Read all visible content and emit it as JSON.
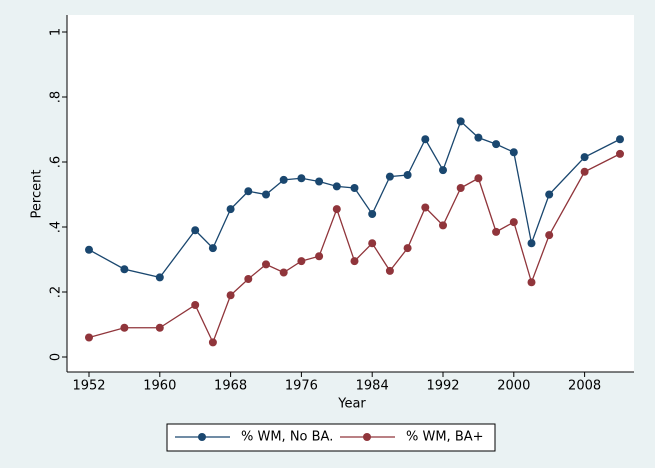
{
  "chart_data": {
    "type": "line",
    "x_label": "Year",
    "y_label": "Percent",
    "x": [
      1952,
      1956,
      1960,
      1964,
      1966,
      1968,
      1970,
      1972,
      1974,
      1976,
      1978,
      1980,
      1982,
      1984,
      1986,
      1988,
      1990,
      1992,
      1994,
      1996,
      1998,
      2000,
      2002,
      2004,
      2008,
      2012
    ],
    "series": [
      {
        "name": "% WM, No BA.",
        "color": "#1a476f",
        "values": [
          0.33,
          0.27,
          0.245,
          0.39,
          0.335,
          0.455,
          0.51,
          0.5,
          0.545,
          0.55,
          0.54,
          0.525,
          0.52,
          0.44,
          0.555,
          0.56,
          0.67,
          0.575,
          0.725,
          0.675,
          0.655,
          0.63,
          0.35,
          0.5,
          0.615,
          0.67
        ]
      },
      {
        "name": "% WM, BA+",
        "color": "#90353b",
        "values": [
          0.06,
          0.09,
          0.09,
          0.16,
          0.045,
          0.19,
          0.24,
          0.285,
          0.26,
          0.295,
          0.31,
          0.455,
          0.295,
          0.35,
          0.265,
          0.335,
          0.46,
          0.405,
          0.52,
          0.55,
          0.385,
          0.415,
          0.23,
          0.375,
          0.57,
          0.625
        ]
      }
    ],
    "xlim": [
      1952,
      2012
    ],
    "xticks": [
      1952,
      1960,
      1968,
      1976,
      1984,
      1992,
      2000,
      2008
    ],
    "ylim": [
      0,
      1
    ],
    "yticks": [
      0,
      {
        "value": 0.2,
        "label": ".2"
      },
      {
        "value": 0.4,
        "label": ".4"
      },
      {
        "value": 0.6,
        "label": ".6"
      },
      {
        "value": 0.8,
        "label": ".8"
      },
      1
    ],
    "grid": false,
    "legend": "bottom"
  }
}
